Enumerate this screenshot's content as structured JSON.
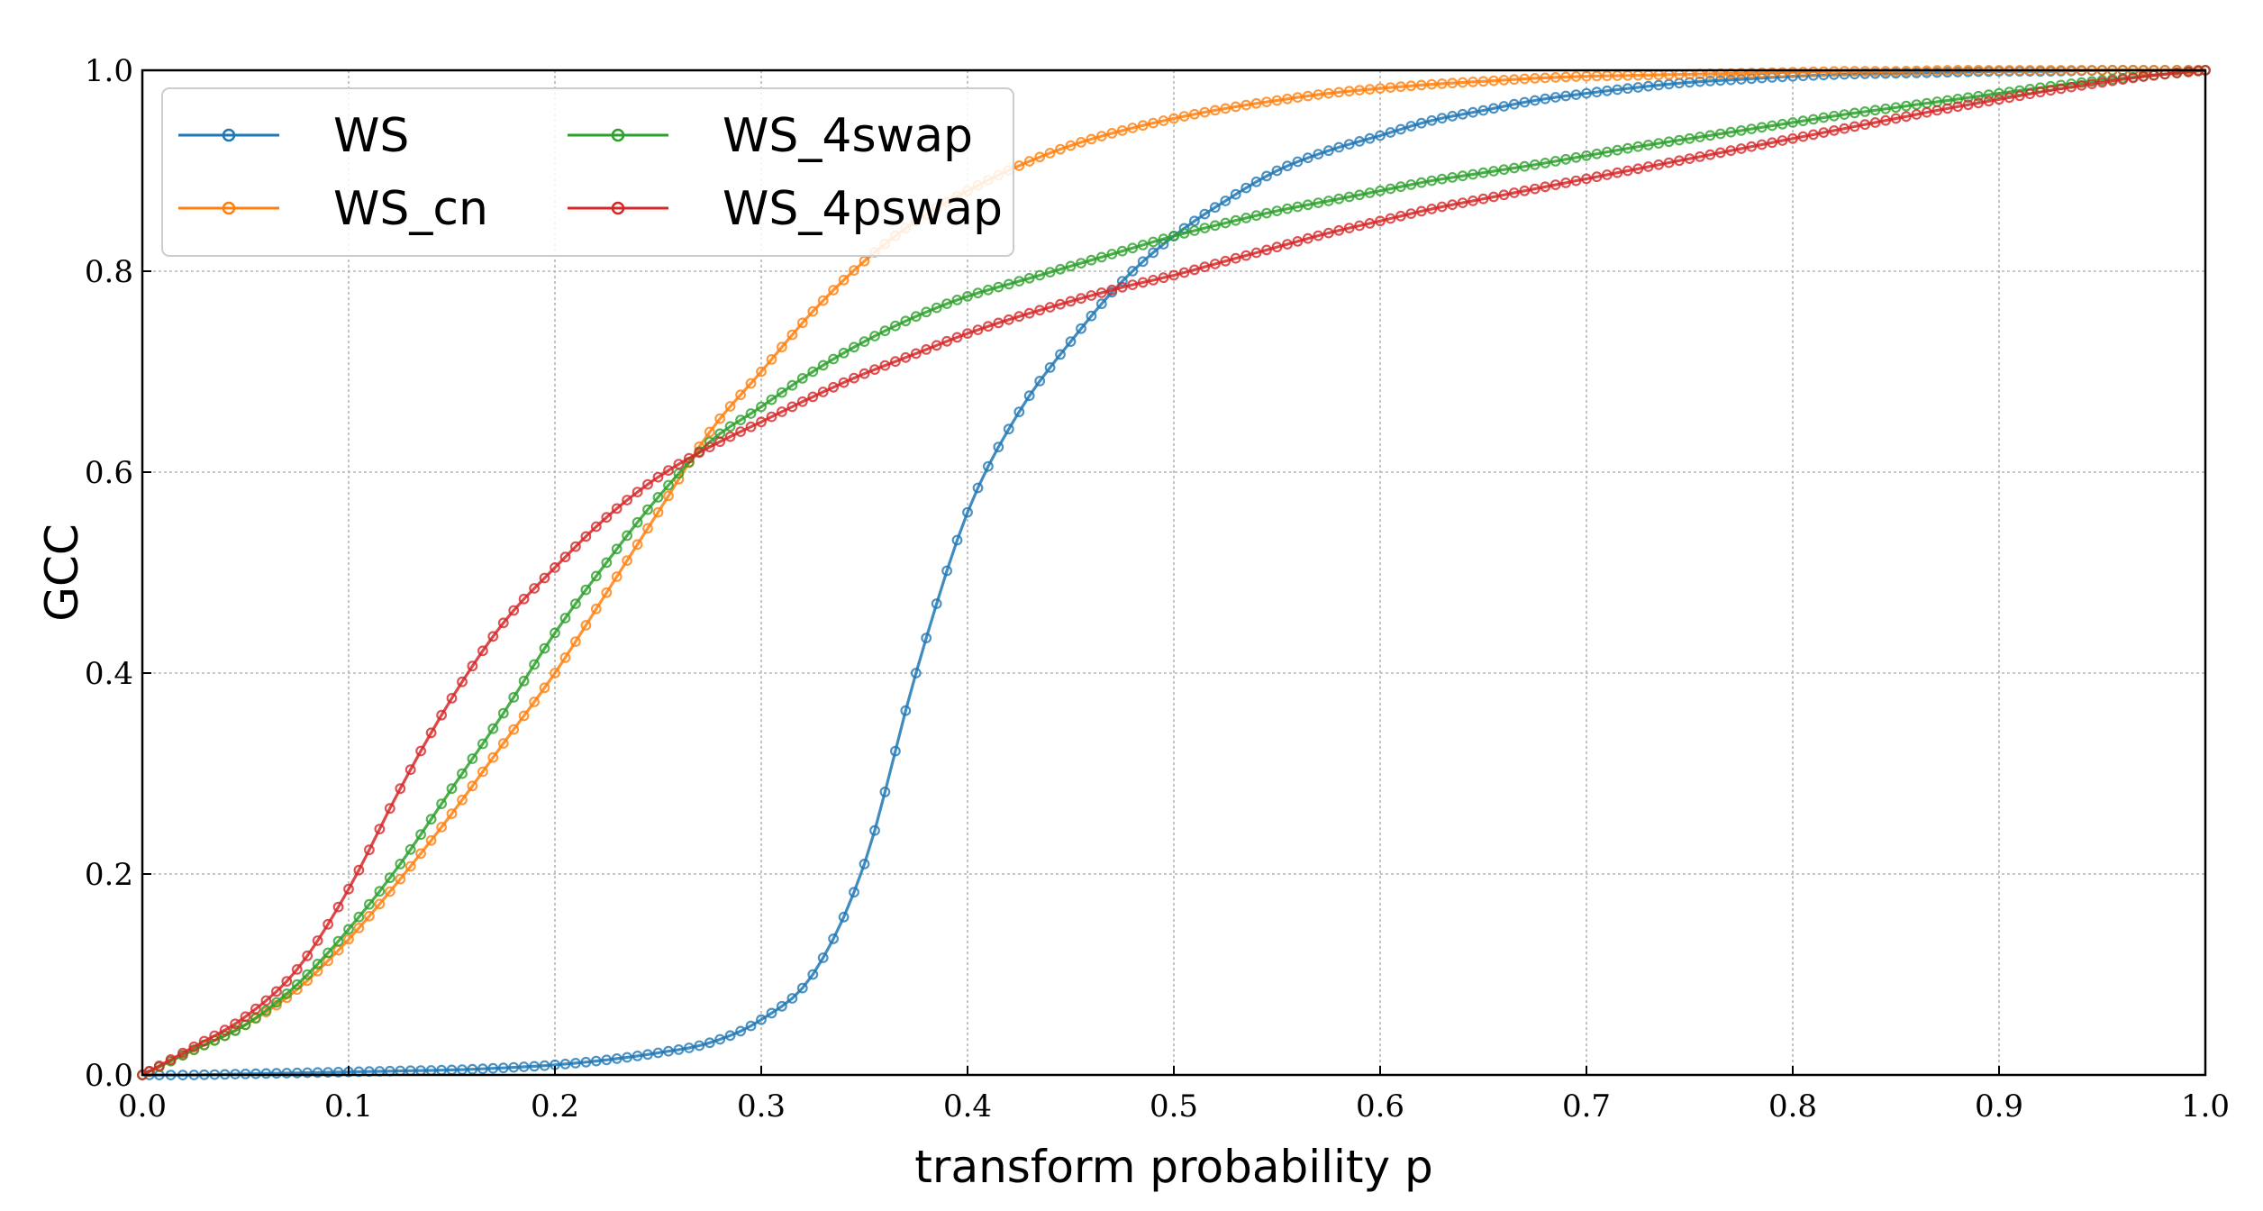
{
  "chart_data": {
    "type": "line",
    "title": "",
    "xlabel": "transform probability p",
    "ylabel": "GCC",
    "xlim": [
      0.0,
      1.0
    ],
    "ylim": [
      0.0,
      1.0
    ],
    "grid": true,
    "legend_position": "top-left",
    "x_ticks": [
      "0.0",
      "0.1",
      "0.2",
      "0.3",
      "0.4",
      "0.5",
      "0.6",
      "0.7",
      "0.8",
      "0.9",
      "1.0"
    ],
    "y_ticks": [
      "0.0",
      "0.2",
      "0.4",
      "0.6",
      "0.8",
      "1.0"
    ],
    "x": [
      0.0,
      0.025,
      0.05,
      0.075,
      0.1,
      0.125,
      0.15,
      0.175,
      0.2,
      0.225,
      0.25,
      0.275,
      0.3,
      0.325,
      0.35,
      0.375,
      0.4,
      0.425,
      0.45,
      0.475,
      0.5,
      0.525,
      0.55,
      0.575,
      0.6,
      0.625,
      0.65,
      0.675,
      0.7,
      0.725,
      0.75,
      0.775,
      0.8,
      0.825,
      0.85,
      0.875,
      0.9,
      0.925,
      0.95,
      0.975,
      1.0
    ],
    "series": [
      {
        "name": "WS",
        "color": "#1f77b4",
        "values": [
          0.0,
          0.0,
          0.001,
          0.002,
          0.003,
          0.004,
          0.005,
          0.007,
          0.01,
          0.015,
          0.022,
          0.032,
          0.055,
          0.1,
          0.21,
          0.4,
          0.56,
          0.66,
          0.73,
          0.79,
          0.835,
          0.87,
          0.9,
          0.92,
          0.935,
          0.95,
          0.96,
          0.97,
          0.977,
          0.983,
          0.988,
          0.991,
          0.994,
          0.996,
          0.997,
          0.998,
          0.999,
          0.999,
          1.0,
          1.0,
          1.0
        ]
      },
      {
        "name": "WS_cn",
        "color": "#ff7f0e",
        "values": [
          0.0,
          0.025,
          0.05,
          0.085,
          0.135,
          0.195,
          0.26,
          0.33,
          0.4,
          0.48,
          0.56,
          0.64,
          0.7,
          0.76,
          0.81,
          0.85,
          0.88,
          0.905,
          0.925,
          0.94,
          0.952,
          0.962,
          0.97,
          0.977,
          0.982,
          0.986,
          0.989,
          0.992,
          0.994,
          0.995,
          0.996,
          0.997,
          0.998,
          0.999,
          0.999,
          1.0,
          1.0,
          1.0,
          1.0,
          1.0,
          1.0
        ]
      },
      {
        "name": "WS_4swap",
        "color": "#2ca02c",
        "values": [
          0.0,
          0.025,
          0.05,
          0.09,
          0.145,
          0.21,
          0.285,
          0.36,
          0.44,
          0.51,
          0.575,
          0.63,
          0.665,
          0.7,
          0.73,
          0.755,
          0.775,
          0.79,
          0.805,
          0.82,
          0.835,
          0.848,
          0.86,
          0.87,
          0.88,
          0.89,
          0.898,
          0.906,
          0.915,
          0.924,
          0.932,
          0.94,
          0.948,
          0.956,
          0.963,
          0.97,
          0.977,
          0.984,
          0.99,
          0.995,
          1.0
        ]
      },
      {
        "name": "WS_4pswap",
        "color": "#d62728",
        "values": [
          0.0,
          0.028,
          0.058,
          0.105,
          0.185,
          0.285,
          0.375,
          0.45,
          0.505,
          0.555,
          0.595,
          0.625,
          0.65,
          0.675,
          0.698,
          0.718,
          0.738,
          0.755,
          0.77,
          0.784,
          0.796,
          0.81,
          0.824,
          0.838,
          0.85,
          0.862,
          0.872,
          0.882,
          0.892,
          0.902,
          0.912,
          0.922,
          0.932,
          0.942,
          0.952,
          0.962,
          0.971,
          0.98,
          0.988,
          0.995,
          1.0
        ]
      }
    ]
  }
}
